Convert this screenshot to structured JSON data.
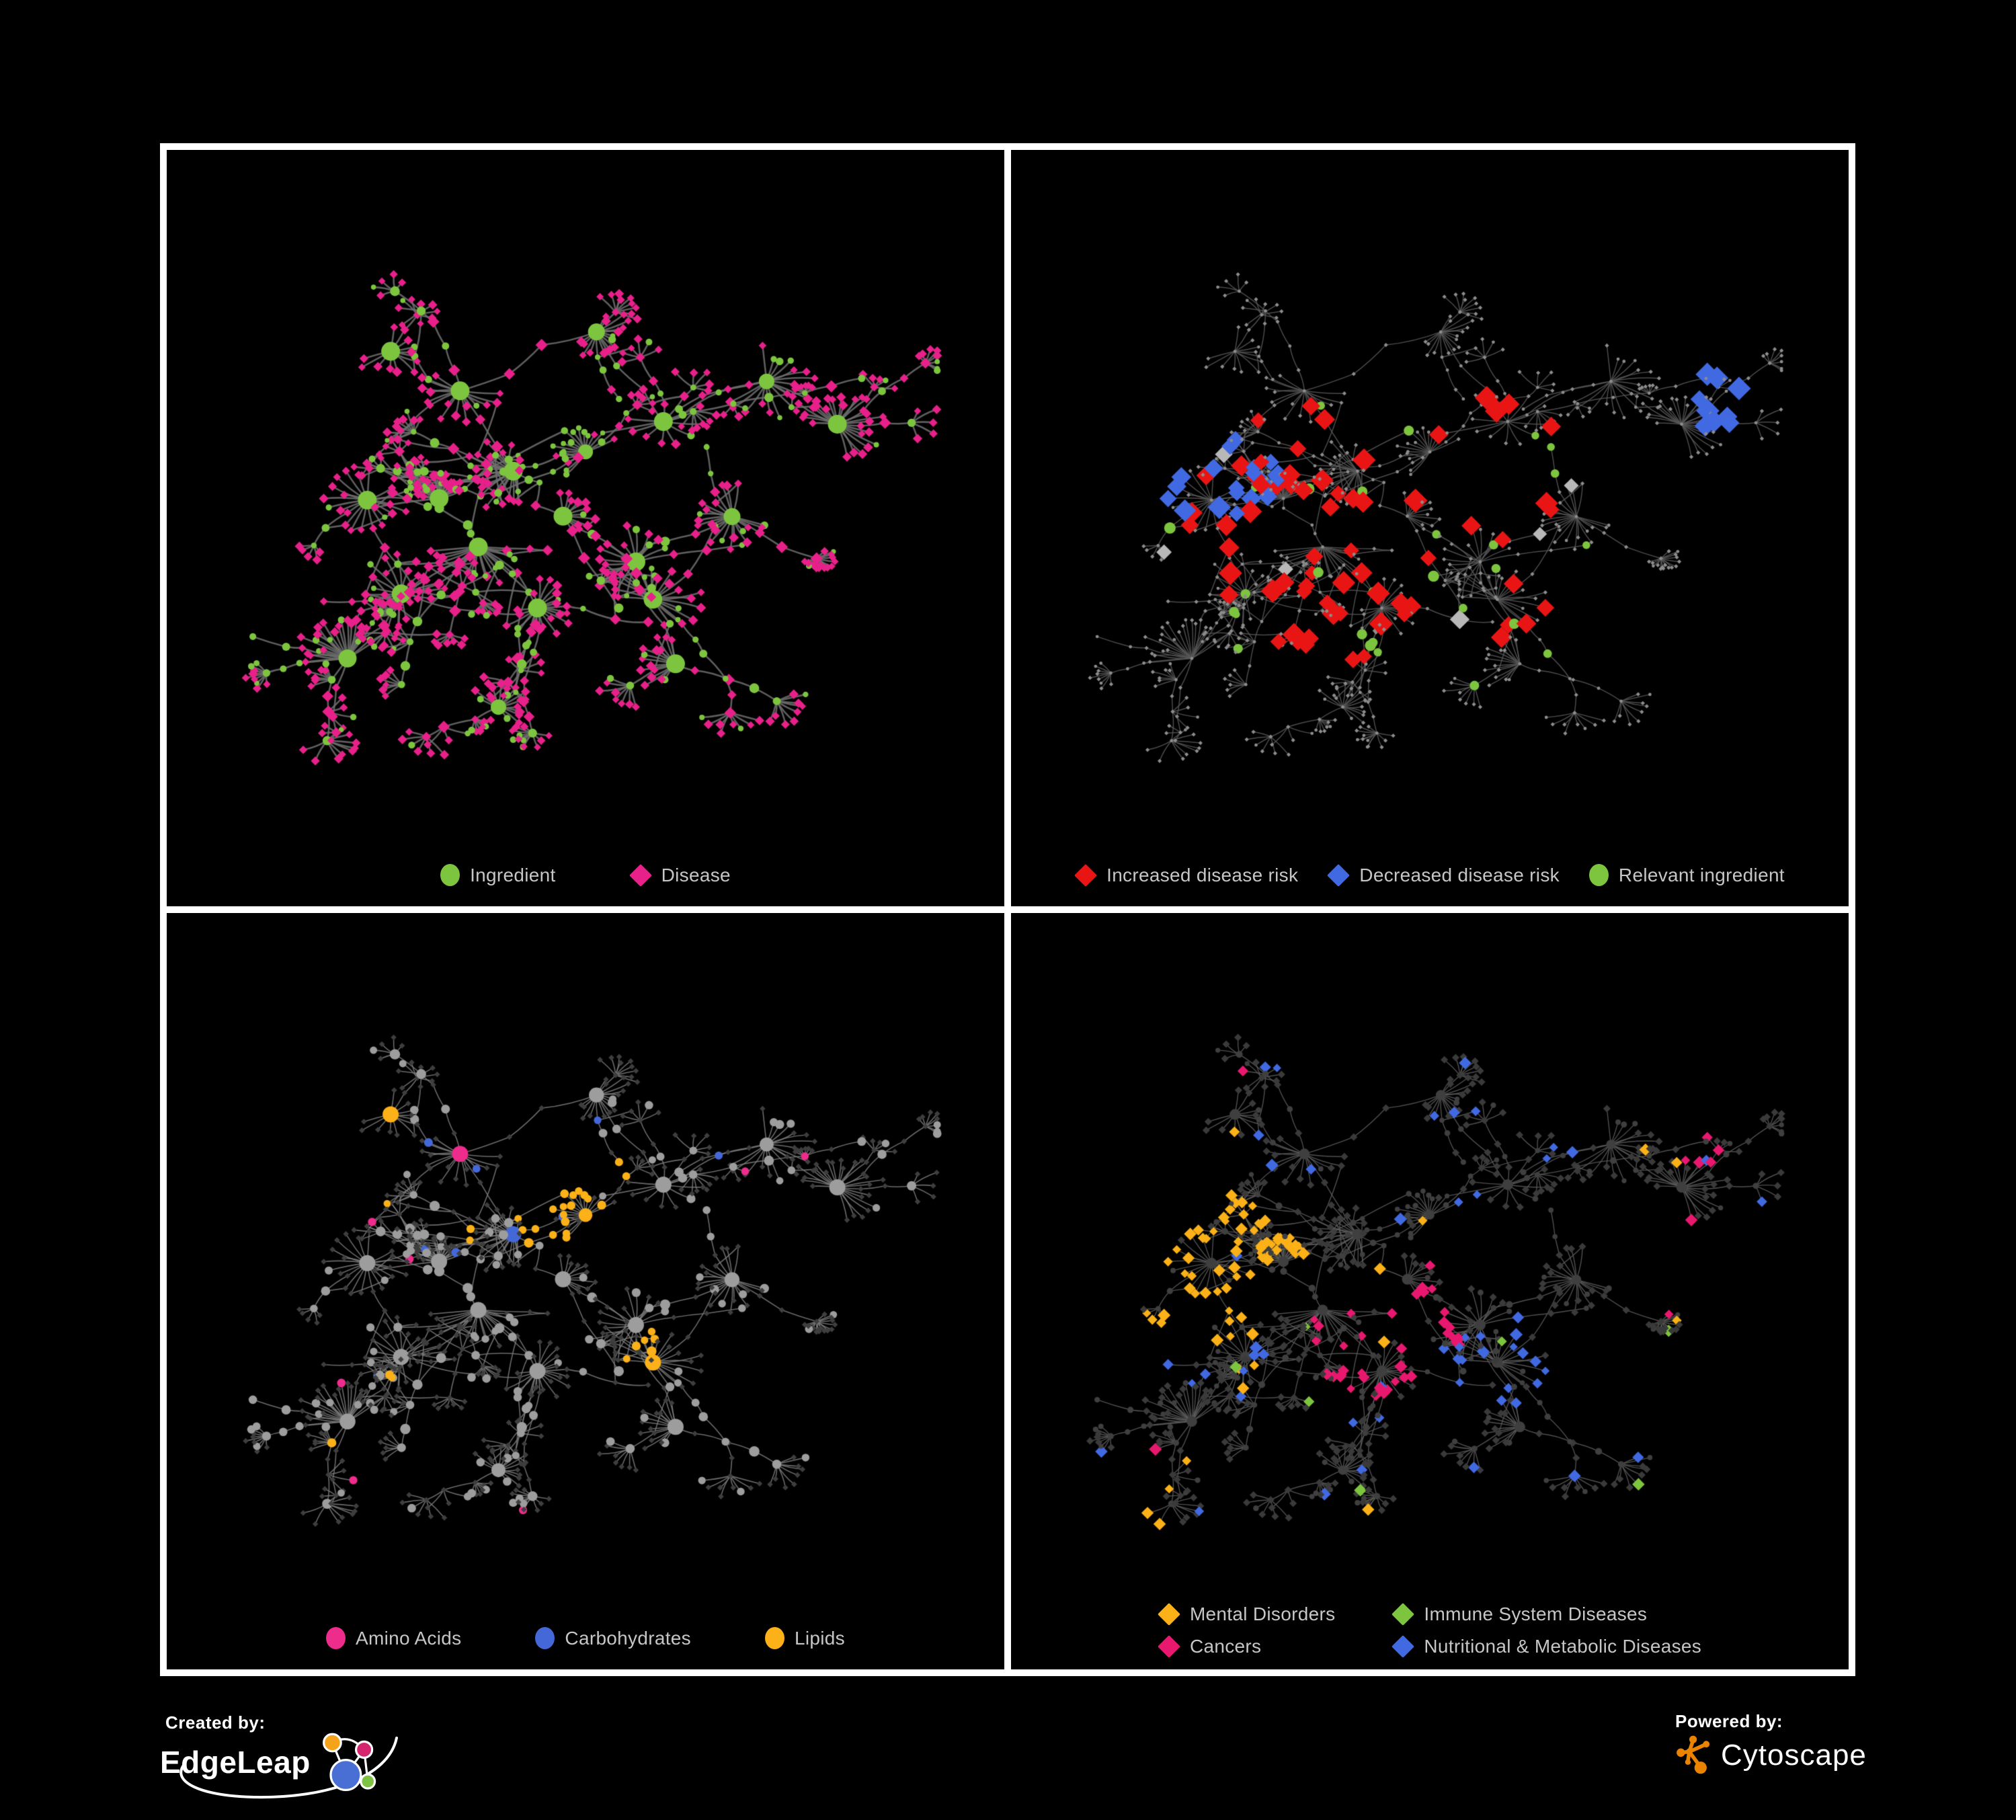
{
  "figure": {
    "background": "#000000",
    "frame_color": "#ffffff",
    "legend_text_color": "#c6c6c6"
  },
  "panels": [
    {
      "id": "ingredient-disease-network",
      "legend": [
        {
          "label": "Ingredient",
          "shape": "circle",
          "color": "#7dc53e"
        },
        {
          "label": "Disease",
          "shape": "diamond",
          "color": "#e8208a"
        }
      ],
      "style": {
        "edge_color": "#6e6e6e",
        "edge_width": 2.6,
        "circle": {
          "color": "#7dc53e",
          "scale": 1.15,
          "add": 0,
          "cap": 14
        },
        "diamond": {
          "color": "#e8208a",
          "scale": 1.0,
          "add": 1,
          "cap": 7
        },
        "highlights": []
      }
    },
    {
      "id": "disease-risk-network",
      "legend": [
        {
          "label": "Increased disease risk",
          "shape": "diamond",
          "color": "#e91515"
        },
        {
          "label": "Decreased disease risk",
          "shape": "diamond",
          "color": "#4169e1"
        },
        {
          "label": "Relevant ingredient",
          "shape": "circle",
          "color": "#7dc53e"
        }
      ],
      "style": {
        "edge_color": "#585858",
        "edge_width": 1.5,
        "circle": {
          "color": "#8d8d8d",
          "flat": 2.4
        },
        "diamond": {
          "color": "#8d8d8d",
          "flat": 2.4
        },
        "highlights": [
          {
            "shape": "d",
            "color": "#4169e1",
            "region": [
              0.22,
              0.5,
              0.08
            ],
            "prob": 0.5,
            "size": 11
          },
          {
            "shape": "d",
            "color": "#4169e1",
            "region": [
              0.9,
              0.36,
              0.05
            ],
            "prob": 0.6,
            "size": 11
          },
          {
            "shape": "d",
            "color": "#e91515",
            "region": [
              0.45,
              0.55,
              0.28
            ],
            "prob": 0.17,
            "size": 11
          },
          {
            "shape": "d",
            "color": "#b8b8b8",
            "region": [
              0.42,
              0.58,
              0.3
            ],
            "prob": 0.045,
            "size": 10
          },
          {
            "shape": "c",
            "color": "#7dc53e",
            "region": [
              0.42,
              0.54,
              0.3
            ],
            "prob": 0.2,
            "size": 7
          },
          {
            "shape": "c",
            "color": "#7dc53e",
            "region": [
              0.7,
              0.75,
              0.3
            ],
            "prob": 0.05,
            "size": 7
          }
        ]
      }
    },
    {
      "id": "ingredient-classes-network",
      "legend": [
        {
          "label": "Amino Acids",
          "shape": "circle",
          "color": "#ed2c8c"
        },
        {
          "label": "Carbohydrates",
          "shape": "circle",
          "color": "#4468d8"
        },
        {
          "label": "Lipids",
          "shape": "circle",
          "color": "#fbb117"
        }
      ],
      "style": {
        "edge_color": "#7c7c7c",
        "edge_width": 1.6,
        "circle": {
          "color": "#9d9d9d",
          "scale": 0.75,
          "add": 3,
          "cap": 12
        },
        "diamond": {
          "color": "#3e3e3e",
          "flat": 3.3
        },
        "highlights": [
          {
            "shape": "c",
            "color": "#fbb117",
            "region": [
              0.5,
              0.44,
              0.1
            ],
            "prob": 0.8
          },
          {
            "shape": "c",
            "color": "#fbb117",
            "region": [
              0.57,
              0.69,
              0.05
            ],
            "prob": 0.85
          },
          {
            "shape": "c",
            "color": "#4468d8",
            "region": [
              0.48,
              0.42,
              0.14
            ],
            "prob": 0.22
          },
          {
            "shape": "c",
            "color": "#ed2c8c",
            "region": [
              0.5,
              0.55,
              0.5
            ],
            "prob": 0.075
          },
          {
            "shape": "c",
            "color": "#fbb117",
            "region": [
              0.5,
              0.5,
              0.5
            ],
            "prob": 0.06
          },
          {
            "shape": "c",
            "color": "#4468d8",
            "region": [
              0.5,
              0.5,
              0.5
            ],
            "prob": 0.025
          }
        ]
      }
    },
    {
      "id": "disease-classes-network",
      "legend_columns": 2,
      "legend": [
        {
          "label": "Mental Disorders",
          "shape": "diamond",
          "color": "#fbb117"
        },
        {
          "label": "Immune System Diseases",
          "shape": "diamond",
          "color": "#7dc53e"
        },
        {
          "label": "Cancers",
          "shape": "diamond",
          "color": "#e9186f"
        },
        {
          "label": "Nutritional & Metabolic Diseases",
          "shape": "diamond",
          "color": "#4169e1"
        }
      ],
      "style": {
        "edge_color": "#5e5e5e",
        "edge_width": 1.4,
        "circle": {
          "color": "#3f3f3f",
          "scale": 0.5,
          "add": 2,
          "cap": 8
        },
        "diamond": {
          "color": "#3a3a3a",
          "flat": 4.3
        },
        "highlights": [
          {
            "shape": "d",
            "color": "#fbb117",
            "region": [
              0.2,
              0.53,
              0.13
            ],
            "prob": 0.8,
            "size": 6
          },
          {
            "shape": "d",
            "color": "#e9186f",
            "region": [
              0.44,
              0.64,
              0.11
            ],
            "prob": 0.55,
            "size": 6
          },
          {
            "shape": "d",
            "color": "#4169e1",
            "region": [
              0.59,
              0.68,
              0.08
            ],
            "prob": 0.7,
            "size": 6
          },
          {
            "shape": "d",
            "color": "#e9186f",
            "region": [
              0.87,
              0.3,
              0.06
            ],
            "prob": 0.5,
            "size": 6
          },
          {
            "shape": "d",
            "color": "#4169e1",
            "region": [
              0.5,
              0.1,
              0.32
            ],
            "prob": 0.13,
            "size": 6
          },
          {
            "shape": "d",
            "color": "#fbb117",
            "region": [
              0.5,
              0.5,
              0.6
            ],
            "prob": 0.035,
            "size": 6
          },
          {
            "shape": "d",
            "color": "#e9186f",
            "region": [
              0.5,
              0.5,
              0.6
            ],
            "prob": 0.02,
            "size": 6
          },
          {
            "shape": "d",
            "color": "#4169e1",
            "region": [
              0.5,
              0.5,
              0.6
            ],
            "prob": 0.06,
            "size": 6
          },
          {
            "shape": "d",
            "color": "#7dc53e",
            "region": [
              0.5,
              0.5,
              0.6
            ],
            "prob": 0.02,
            "size": 6
          }
        ]
      }
    }
  ],
  "branding": {
    "created_by": {
      "label": "Created by:",
      "name": "EdgeLeap",
      "logo_colors": {
        "blue": "#4a6fd4",
        "orange": "#f6a31c",
        "pink": "#d5256e",
        "green": "#7dc242",
        "outline": "#ffffff"
      }
    },
    "powered_by": {
      "label": "Powered by:",
      "name": "Cytoscape",
      "logo_color": "#e98300"
    }
  },
  "network_spec": {
    "seed": 11,
    "branches": 14,
    "extra_edges": 80,
    "circle_rich_hubs": [
      17
    ],
    "hubs": [
      [
        0.3,
        0.52
      ],
      [
        0.4,
        0.47
      ],
      [
        0.36,
        0.6
      ],
      [
        0.47,
        0.55
      ],
      [
        0.33,
        0.34
      ],
      [
        0.52,
        0.25
      ],
      [
        0.25,
        0.68
      ],
      [
        0.44,
        0.7
      ],
      [
        0.57,
        0.62
      ],
      [
        0.23,
        0.28
      ],
      [
        0.61,
        0.4
      ],
      [
        0.74,
        0.33
      ],
      [
        0.84,
        0.4
      ],
      [
        0.38,
        0.86
      ],
      [
        0.17,
        0.78
      ],
      [
        0.63,
        0.8
      ],
      [
        0.7,
        0.55
      ],
      [
        0.5,
        0.44
      ],
      [
        0.2,
        0.53
      ],
      [
        0.59,
        0.68
      ]
    ]
  }
}
